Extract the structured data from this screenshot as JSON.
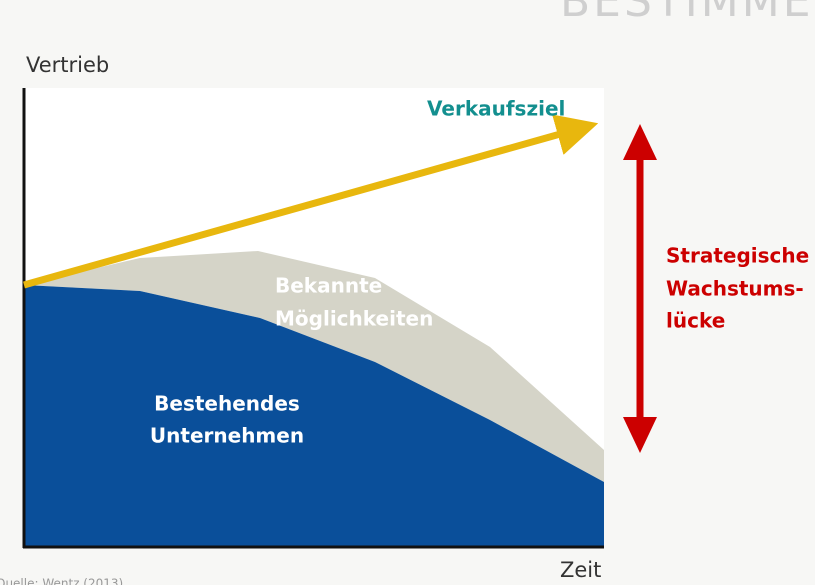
{
  "header": {
    "title": "BESTIMMEN DER INNOV"
  },
  "diagram": {
    "y_axis_label": "Vertrieb",
    "x_axis_label": "Zeit",
    "target_label": "Verkaufsziel",
    "known_label": [
      "Bekannte",
      "Möglichkeiten"
    ],
    "existing_label": [
      "Bestehendes",
      "Unternehmen"
    ],
    "gap_label": [
      "Strategische",
      "Wachstums-",
      "lücke"
    ]
  },
  "footer": {
    "source": "Quelle: Wentz (2013)"
  }
}
